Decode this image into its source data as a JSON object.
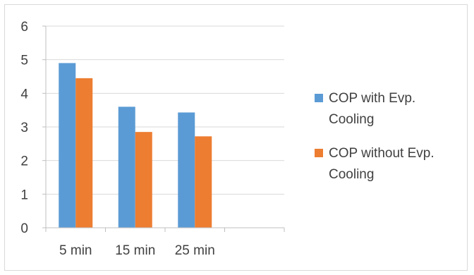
{
  "chart_data": {
    "type": "bar",
    "categories": [
      "5 min",
      "15 min",
      "25 min",
      ""
    ],
    "series": [
      {
        "name": "COP with Evp. Cooling",
        "color": "#5b9bd5",
        "values": [
          4.9,
          3.6,
          3.43,
          null
        ]
      },
      {
        "name": "COP without Evp. Cooling",
        "color": "#ed7d31",
        "values": [
          4.45,
          2.85,
          2.72,
          null
        ]
      }
    ],
    "title": "",
    "xlabel": "",
    "ylabel": "",
    "ylim": [
      0,
      6
    ],
    "yticks": [
      0,
      1,
      2,
      3,
      4,
      5,
      6
    ],
    "grid": true,
    "legend_position": "right"
  }
}
